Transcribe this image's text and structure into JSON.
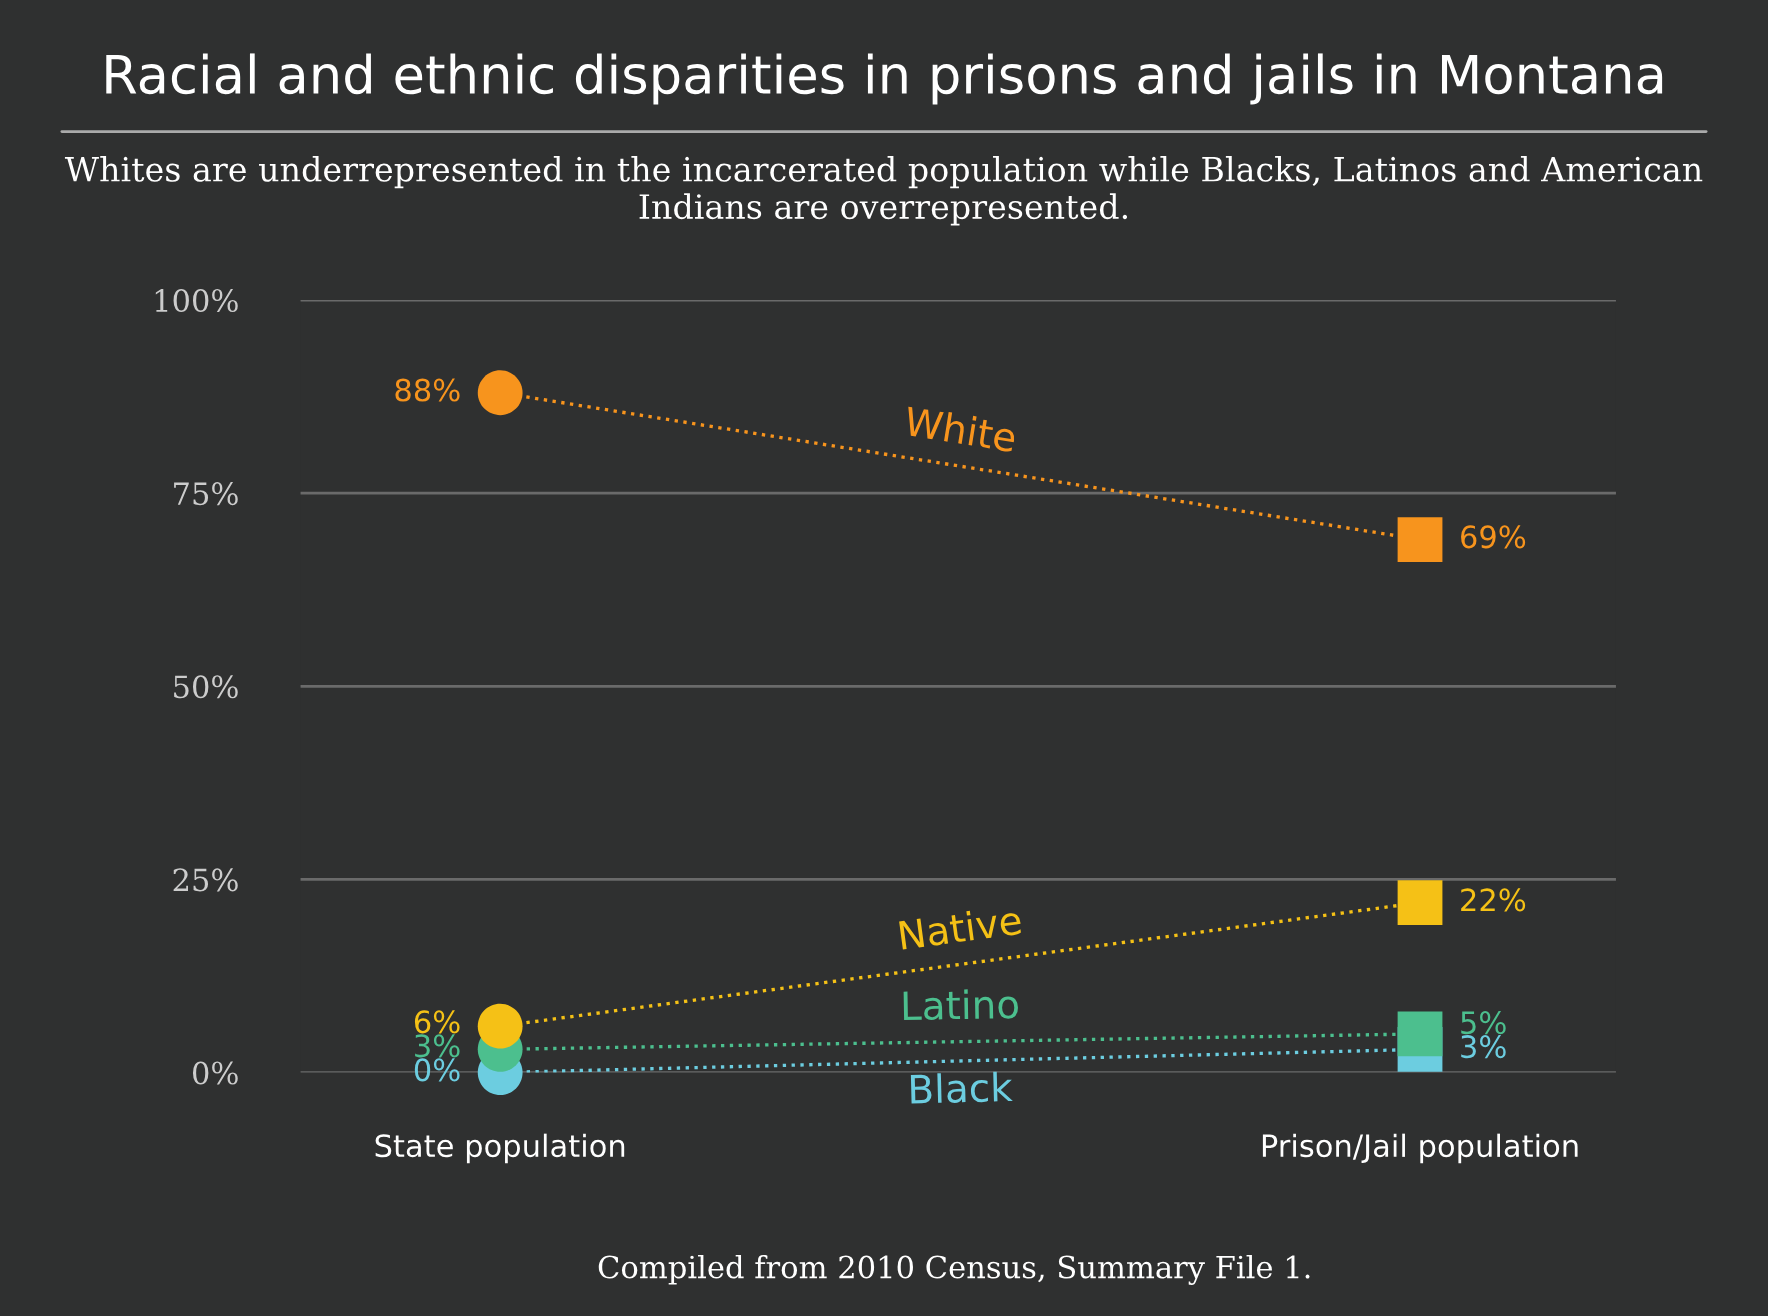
{
  "chart_data": {
    "type": "line",
    "title": "Racial and ethnic disparities in prisons and jails in Montana",
    "subtitle": "Whites are underrepresented in the incarcerated population while Blacks, Latinos and American Indians are overrepresented.",
    "categories": [
      "State population",
      "Prison/Jail population"
    ],
    "series": [
      {
        "name": "White",
        "color": "#f7941d",
        "values": [
          88,
          69
        ],
        "value_labels": [
          "88%",
          "69%"
        ]
      },
      {
        "name": "Native",
        "color": "#f5c116",
        "values": [
          6,
          22
        ],
        "value_labels": [
          "6%",
          "22%"
        ]
      },
      {
        "name": "Latino",
        "color": "#4cbf8e",
        "values": [
          3,
          5
        ],
        "value_labels": [
          "3%",
          "5%"
        ]
      },
      {
        "name": "Black",
        "color": "#6ccde0",
        "values": [
          0,
          3
        ],
        "value_labels": [
          "0%",
          "3%"
        ]
      }
    ],
    "ylim": [
      0,
      100
    ],
    "yticks": [
      {
        "value": 0,
        "label": "0%"
      },
      {
        "value": 25,
        "label": "25%"
      },
      {
        "value": 50,
        "label": "50%"
      },
      {
        "value": 75,
        "label": "75%"
      },
      {
        "value": 100,
        "label": "100%"
      }
    ],
    "grid": "y",
    "legend": false,
    "line_style": "dotted",
    "marker": "circle",
    "annotations": [
      "Compiled from 2010 Census, Summary File 1."
    ]
  }
}
